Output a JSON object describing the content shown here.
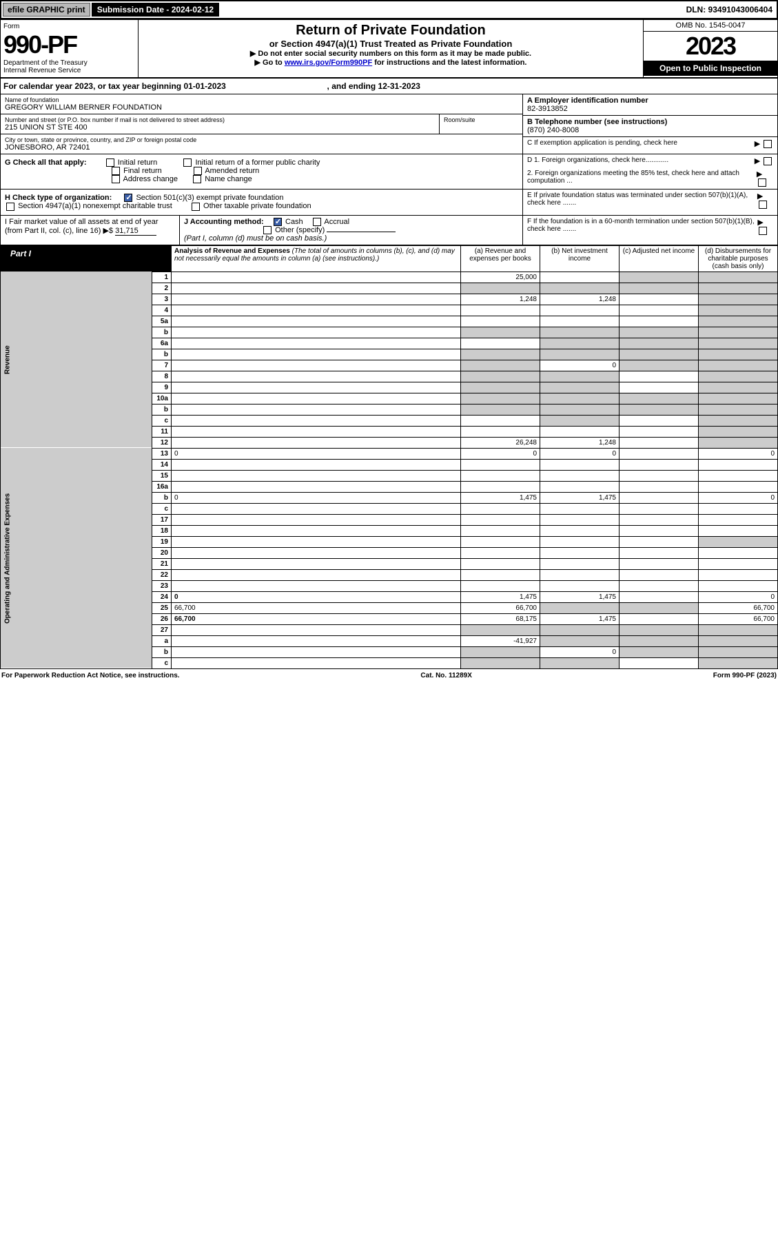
{
  "topbar": {
    "efile": "efile GRAPHIC print",
    "sub_label": "Submission Date - 2024-02-12",
    "dln": "DLN: 93491043006404"
  },
  "header": {
    "form_word": "Form",
    "form_num": "990-PF",
    "dept": "Department of the Treasury",
    "irs": "Internal Revenue Service",
    "title1": "Return of Private Foundation",
    "title2": "or Section 4947(a)(1) Trust Treated as Private Foundation",
    "instr1": "▶ Do not enter social security numbers on this form as it may be made public.",
    "instr2_pre": "▶ Go to ",
    "instr2_link": "www.irs.gov/Form990PF",
    "instr2_post": " for instructions and the latest information.",
    "omb": "OMB No. 1545-0047",
    "year": "2023",
    "inspect": "Open to Public Inspection"
  },
  "cal_year": {
    "prefix": "For calendar year 2023, or tax year beginning ",
    "begin": "01-01-2023",
    "mid": " , and ending ",
    "end": "12-31-2023"
  },
  "ident": {
    "name_label": "Name of foundation",
    "name": "GREGORY WILLIAM BERNER FOUNDATION",
    "addr_label": "Number and street (or P.O. box number if mail is not delivered to street address)",
    "addr": "215 UNION ST STE 400",
    "room_label": "Room/suite",
    "room": "",
    "city_label": "City or town, state or province, country, and ZIP or foreign postal code",
    "city": "JONESBORO, AR  72401",
    "ein_label": "A Employer identification number",
    "ein": "82-3913852",
    "phone_label": "B Telephone number (see instructions)",
    "phone": "(870) 240-8008",
    "c_label": "C If exemption application is pending, check here"
  },
  "section_g": {
    "label": "G Check all that apply:",
    "opts": [
      "Initial return",
      "Final return",
      "Address change",
      "Initial return of a former public charity",
      "Amended return",
      "Name change"
    ]
  },
  "section_h": {
    "label": "H Check type of organization:",
    "opt1": "Section 501(c)(3) exempt private foundation",
    "opt2": "Section 4947(a)(1) nonexempt charitable trust",
    "opt3": "Other taxable private foundation"
  },
  "section_i": {
    "label": "I Fair market value of all assets at end of year (from Part II, col. (c), line 16)",
    "arrow": "▶$",
    "value": "31,715"
  },
  "section_j": {
    "label": "J Accounting method:",
    "cash": "Cash",
    "accrual": "Accrual",
    "other": "Other (specify)",
    "note": "(Part I, column (d) must be on cash basis.)"
  },
  "section_d": {
    "d1": "D 1. Foreign organizations, check here............",
    "d2": "2. Foreign organizations meeting the 85% test, check here and attach computation ..."
  },
  "section_e": "E  If private foundation status was terminated under section 507(b)(1)(A), check here .......",
  "section_f": "F  If the foundation is in a 60-month termination under section 507(b)(1)(B), check here .......",
  "part1": {
    "tab": "Part I",
    "title": "Analysis of Revenue and Expenses",
    "subtitle": "(The total of amounts in columns (b), (c), and (d) may not necessarily equal the amounts in column (a) (see instructions).)",
    "col_a": "(a) Revenue and expenses per books",
    "col_b": "(b) Net investment income",
    "col_c": "(c) Adjusted net income",
    "col_d": "(d) Disbursements for charitable purposes (cash basis only)",
    "side_rev": "Revenue",
    "side_exp": "Operating and Administrative Expenses"
  },
  "lines": [
    {
      "n": "1",
      "d": "",
      "a": "25,000",
      "b": "",
      "c": "",
      "cg": true,
      "dg": true
    },
    {
      "n": "2",
      "d": "",
      "a": "",
      "b": "",
      "c": "",
      "ag": true,
      "bg": true,
      "cg": true,
      "dg": true
    },
    {
      "n": "3",
      "d": "",
      "a": "1,248",
      "b": "1,248",
      "c": "",
      "dg": true
    },
    {
      "n": "4",
      "d": "",
      "a": "",
      "b": "",
      "c": "",
      "dg": true
    },
    {
      "n": "5a",
      "d": "",
      "a": "",
      "b": "",
      "c": "",
      "dg": true
    },
    {
      "n": "b",
      "d": "",
      "a": "",
      "b": "",
      "c": "",
      "ag": true,
      "bg": true,
      "cg": true,
      "dg": true
    },
    {
      "n": "6a",
      "d": "",
      "a": "",
      "b": "",
      "c": "",
      "bg": true,
      "cg": true,
      "dg": true
    },
    {
      "n": "b",
      "d": "",
      "a": "",
      "b": "",
      "c": "",
      "ag": true,
      "bg": true,
      "cg": true,
      "dg": true
    },
    {
      "n": "7",
      "d": "",
      "a": "",
      "b": "0",
      "c": "",
      "ag": true,
      "cg": true,
      "dg": true
    },
    {
      "n": "8",
      "d": "",
      "a": "",
      "b": "",
      "c": "",
      "ag": true,
      "bg": true,
      "dg": true
    },
    {
      "n": "9",
      "d": "",
      "a": "",
      "b": "",
      "c": "",
      "ag": true,
      "bg": true,
      "dg": true
    },
    {
      "n": "10a",
      "d": "",
      "a": "",
      "b": "",
      "c": "",
      "ag": true,
      "bg": true,
      "cg": true,
      "dg": true
    },
    {
      "n": "b",
      "d": "",
      "a": "",
      "b": "",
      "c": "",
      "ag": true,
      "bg": true,
      "cg": true,
      "dg": true
    },
    {
      "n": "c",
      "d": "",
      "a": "",
      "b": "",
      "c": "",
      "bg": true,
      "dg": true
    },
    {
      "n": "11",
      "d": "",
      "a": "",
      "b": "",
      "c": "",
      "dg": true
    },
    {
      "n": "12",
      "d": "",
      "a": "26,248",
      "b": "1,248",
      "c": "",
      "dg": true,
      "bold": true
    },
    {
      "n": "13",
      "d": "0",
      "a": "0",
      "b": "0",
      "c": ""
    },
    {
      "n": "14",
      "d": "",
      "a": "",
      "b": "",
      "c": ""
    },
    {
      "n": "15",
      "d": "",
      "a": "",
      "b": "",
      "c": ""
    },
    {
      "n": "16a",
      "d": "",
      "a": "",
      "b": "",
      "c": ""
    },
    {
      "n": "b",
      "d": "0",
      "a": "1,475",
      "b": "1,475",
      "c": ""
    },
    {
      "n": "c",
      "d": "",
      "a": "",
      "b": "",
      "c": ""
    },
    {
      "n": "17",
      "d": "",
      "a": "",
      "b": "",
      "c": ""
    },
    {
      "n": "18",
      "d": "",
      "a": "",
      "b": "",
      "c": ""
    },
    {
      "n": "19",
      "d": "",
      "a": "",
      "b": "",
      "c": "",
      "dg": true
    },
    {
      "n": "20",
      "d": "",
      "a": "",
      "b": "",
      "c": ""
    },
    {
      "n": "21",
      "d": "",
      "a": "",
      "b": "",
      "c": ""
    },
    {
      "n": "22",
      "d": "",
      "a": "",
      "b": "",
      "c": ""
    },
    {
      "n": "23",
      "d": "",
      "a": "",
      "b": "",
      "c": ""
    },
    {
      "n": "24",
      "d": "0",
      "a": "1,475",
      "b": "1,475",
      "c": "",
      "bold": true
    },
    {
      "n": "25",
      "d": "66,700",
      "a": "66,700",
      "b": "",
      "c": "",
      "bg": true,
      "cg": true
    },
    {
      "n": "26",
      "d": "66,700",
      "a": "68,175",
      "b": "1,475",
      "c": "",
      "bold": true
    },
    {
      "n": "27",
      "d": "",
      "a": "",
      "b": "",
      "c": "",
      "ag": true,
      "bg": true,
      "cg": true,
      "dg": true
    },
    {
      "n": "a",
      "d": "",
      "a": "-41,927",
      "b": "",
      "c": "",
      "bg": true,
      "cg": true,
      "dg": true,
      "bold": true
    },
    {
      "n": "b",
      "d": "",
      "a": "",
      "b": "0",
      "c": "",
      "ag": true,
      "cg": true,
      "dg": true,
      "bold": true
    },
    {
      "n": "c",
      "d": "",
      "a": "",
      "b": "",
      "c": "",
      "ag": true,
      "bg": true,
      "dg": true,
      "bold": true
    }
  ],
  "footer": {
    "left": "For Paperwork Reduction Act Notice, see instructions.",
    "mid": "Cat. No. 11289X",
    "right": "Form 990-PF (2023)"
  }
}
